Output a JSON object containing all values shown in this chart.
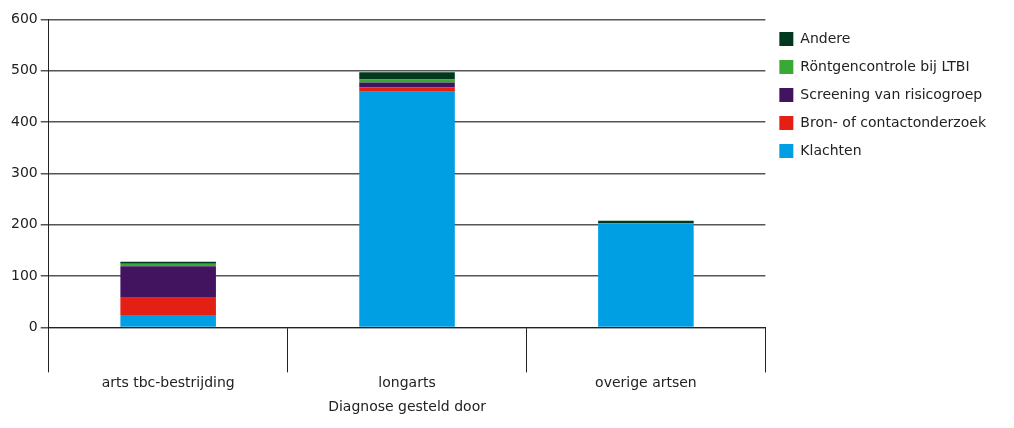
{
  "chart_data": {
    "type": "bar",
    "stacked": true,
    "xlabel": "Diagnose gesteld door",
    "categories": [
      "arts tbc-bestrijding",
      "longarts",
      "overige artsen"
    ],
    "series": [
      {
        "name": "Klachten",
        "color": "#009fe3",
        "values": [
          24,
          459,
          203
        ]
      },
      {
        "name": "Bron- of contactonderzoek",
        "color": "#e41f13",
        "values": [
          34,
          9,
          0
        ]
      },
      {
        "name": "Screening van risicogroep",
        "color": "#42145f",
        "values": [
          61,
          9,
          0
        ]
      },
      {
        "name": "Röntgencontrole bij LTBI",
        "color": "#39a935",
        "values": [
          5,
          6,
          0
        ]
      },
      {
        "name": "Andere",
        "color": "#00391d",
        "values": [
          4,
          14,
          5
        ]
      }
    ],
    "ylim": [
      0,
      600
    ],
    "yticks": [
      0,
      100,
      200,
      300,
      400,
      500,
      600
    ],
    "grid": "y",
    "legend": "right"
  }
}
